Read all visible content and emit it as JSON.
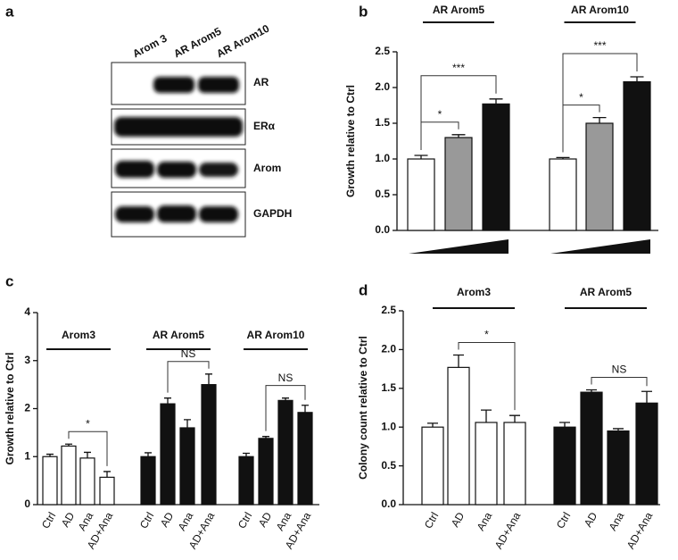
{
  "blot": {
    "panel_label": "a",
    "lanes": [
      "Arom 3",
      "AR Arom5",
      "AR Arom10"
    ],
    "rows": [
      "AR",
      "ERα",
      "Arom",
      "GAPDH"
    ]
  },
  "chart_data": [
    {
      "type": "bar",
      "panel_label": "b",
      "y_label": "Growth relative to Ctrl",
      "ylim": [
        0,
        2.5
      ],
      "yticks": [
        {
          "value": 0,
          "label": "0.0"
        },
        {
          "value": 0.5,
          "label": "0.5"
        },
        {
          "value": 1,
          "label": "1.0"
        },
        {
          "value": 1.5,
          "label": "1.5"
        },
        {
          "value": 2,
          "label": "2.0"
        },
        {
          "value": 2.5,
          "label": "2.5"
        }
      ],
      "groups": [
        {
          "name": "AR Arom5",
          "colors": [
            "#ffffff",
            "#999999",
            "#111111"
          ],
          "values": [
            1.0,
            1.3,
            1.77
          ],
          "errors": [
            0.05,
            0.04,
            0.07
          ],
          "annotations": [
            {
              "text": "*",
              "between": [
                0,
                1
              ]
            },
            {
              "text": "***",
              "between": [
                0,
                2
              ]
            }
          ]
        },
        {
          "name": "AR Arom10",
          "colors": [
            "#ffffff",
            "#999999",
            "#111111"
          ],
          "values": [
            1.0,
            1.5,
            2.08
          ],
          "errors": [
            0.02,
            0.08,
            0.07
          ],
          "annotations": [
            {
              "text": "*",
              "between": [
                0,
                1
              ]
            },
            {
              "text": "***",
              "between": [
                0,
                2
              ]
            }
          ]
        }
      ]
    },
    {
      "type": "bar",
      "panel_label": "c",
      "y_label": "Growth relative to Ctrl",
      "ylim": [
        0,
        4
      ],
      "yticks": [
        0,
        1,
        2,
        3,
        4
      ],
      "categories": [
        "Ctrl",
        "AD",
        "Ana",
        "AD+Ana"
      ],
      "groups": [
        {
          "name": "Arom3",
          "color": "#ffffff",
          "values": [
            1.0,
            1.22,
            0.97,
            0.57
          ],
          "errors": [
            0.05,
            0.04,
            0.12,
            0.12
          ],
          "annotations": [
            {
              "text": "*",
              "between": [
                1,
                3
              ]
            }
          ]
        },
        {
          "name": "AR Arom5",
          "color": "#111111",
          "values": [
            1.0,
            2.1,
            1.6,
            2.5
          ],
          "errors": [
            0.08,
            0.12,
            0.17,
            0.22
          ],
          "annotations": [
            {
              "text": "NS",
              "between": [
                1,
                3
              ]
            }
          ]
        },
        {
          "name": "AR Arom10",
          "color": "#111111",
          "values": [
            1.0,
            1.38,
            2.17,
            1.92
          ],
          "errors": [
            0.07,
            0.04,
            0.05,
            0.15
          ],
          "annotations": [
            {
              "text": "NS",
              "between": [
                1,
                3
              ]
            }
          ]
        }
      ]
    },
    {
      "type": "bar",
      "panel_label": "d",
      "y_label": "Colony count relative to Ctrl",
      "ylim": [
        0,
        2.5
      ],
      "yticks": [
        {
          "value": 0,
          "label": "0.0"
        },
        {
          "value": 0.5,
          "label": "0.5"
        },
        {
          "value": 1,
          "label": "1.0"
        },
        {
          "value": 1.5,
          "label": "1.5"
        },
        {
          "value": 2,
          "label": "2.0"
        },
        {
          "value": 2.5,
          "label": "2.5"
        }
      ],
      "categories": [
        "Ctrl",
        "AD",
        "Ana",
        "AD+Ana"
      ],
      "groups": [
        {
          "name": "Arom3",
          "color": "#ffffff",
          "values": [
            1.0,
            1.77,
            1.06,
            1.06
          ],
          "errors": [
            0.05,
            0.16,
            0.16,
            0.09
          ],
          "annotations": [
            {
              "text": "*",
              "between": [
                1,
                3
              ]
            }
          ]
        },
        {
          "name": "AR Arom5",
          "color": "#111111",
          "values": [
            1.0,
            1.45,
            0.95,
            1.31
          ],
          "errors": [
            0.06,
            0.03,
            0.03,
            0.15
          ],
          "annotations": [
            {
              "text": "NS",
              "between": [
                1,
                3
              ]
            }
          ]
        }
      ]
    }
  ]
}
